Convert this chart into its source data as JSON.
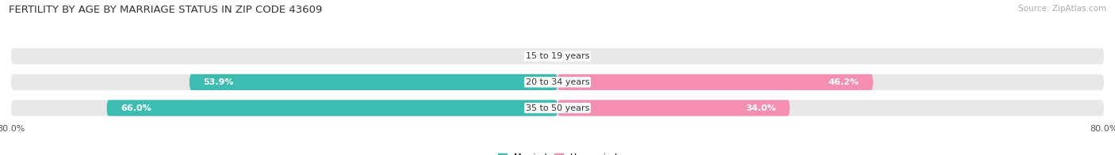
{
  "title": "FERTILITY BY AGE BY MARRIAGE STATUS IN ZIP CODE 43609",
  "source": "Source: ZipAtlas.com",
  "categories": [
    "15 to 19 years",
    "20 to 34 years",
    "35 to 50 years"
  ],
  "married": [
    0.0,
    53.9,
    66.0
  ],
  "unmarried": [
    0.0,
    46.2,
    34.0
  ],
  "married_color": "#3dbdb1",
  "unmarried_color": "#f48fb1",
  "bar_bg_color": "#e8e8e8",
  "bar_height": 0.62,
  "xlim": 80.0,
  "title_fontsize": 9.5,
  "source_fontsize": 7.5,
  "label_fontsize": 8,
  "axis_label_fontsize": 8,
  "legend_fontsize": 8,
  "background_color": "#ffffff",
  "bar_label_color_inside": "#ffffff",
  "bar_label_color_outside": "#555555"
}
